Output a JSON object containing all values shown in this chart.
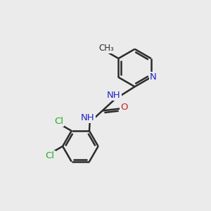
{
  "background_color": "#ebebeb",
  "bond_color": "#2b2b2b",
  "bond_width": 1.8,
  "atom_colors": {
    "N": "#2222cc",
    "O": "#cc2222",
    "Cl": "#22aa22",
    "C": "#2b2b2b",
    "H": "#777777",
    "CH3": "#2b2b2b"
  },
  "font_size_atoms": 9.5,
  "figsize": [
    3.0,
    3.0
  ],
  "dpi": 100,
  "xlim": [
    0,
    10
  ],
  "ylim": [
    0,
    10
  ]
}
